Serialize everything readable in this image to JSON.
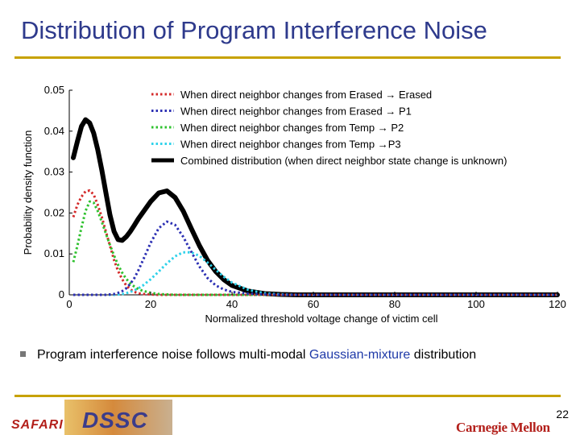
{
  "slide": {
    "title": "Distribution of Program Interference Noise",
    "bullet": {
      "text_before": "Program interference noise follows multi-modal ",
      "highlight": "Gaussian-mixture",
      "text_after": " distribution"
    },
    "page_number": "22",
    "logos": {
      "safari": "SAFARI",
      "dssc": "DSSC",
      "cmu": "Carnegie Mellon"
    }
  },
  "chart_data": {
    "type": "line",
    "xlabel": "Normalized threshold voltage change of victim cell",
    "ylabel": "Probability density function",
    "xlim": [
      0,
      120
    ],
    "ylim": [
      0,
      0.05
    ],
    "xticks": [
      0,
      20,
      40,
      60,
      80,
      100,
      120
    ],
    "yticks": [
      0,
      0.01,
      0.02,
      0.03,
      0.04,
      0.05
    ],
    "ytick_labels": [
      "0",
      "0.01",
      "0.02",
      "0.03",
      "0.04",
      "0.05"
    ],
    "legend_position": "top-right",
    "x": [
      1,
      2,
      3,
      4,
      5,
      6,
      7,
      8,
      9,
      10,
      11,
      12,
      13,
      14,
      15,
      16,
      17,
      18,
      20,
      22,
      24,
      26,
      28,
      30,
      32,
      34,
      36,
      38,
      40,
      44,
      48,
      52,
      56,
      60,
      70,
      80,
      90,
      100,
      110,
      120
    ],
    "series": [
      {
        "name": "When direct neighbor changes from Erased → Erased",
        "color": "#d42a2a",
        "style": "dotted",
        "width": 3,
        "values": [
          0.019,
          0.022,
          0.024,
          0.0253,
          0.0255,
          0.0245,
          0.022,
          0.019,
          0.0155,
          0.012,
          0.0085,
          0.0058,
          0.0038,
          0.0023,
          0.0013,
          0.0007,
          0.0004,
          0.0002,
          0.0001,
          0,
          0,
          0,
          0,
          0,
          0,
          0,
          0,
          0,
          0,
          0,
          0,
          0,
          0,
          0,
          0,
          0,
          0,
          0,
          0,
          0
        ]
      },
      {
        "name": "When direct neighbor changes from Erased → P1",
        "color": "#2b2fb3",
        "style": "dotted",
        "width": 3,
        "values": [
          0,
          0,
          0,
          0,
          0,
          0,
          0,
          0,
          0,
          0.0001,
          0.0002,
          0.0005,
          0.0009,
          0.0016,
          0.0027,
          0.0041,
          0.006,
          0.0082,
          0.0127,
          0.0163,
          0.0179,
          0.0171,
          0.0142,
          0.0105,
          0.0069,
          0.0041,
          0.0023,
          0.0013,
          0.0007,
          0.0003,
          0.0001,
          0,
          0,
          0,
          0,
          0,
          0,
          0,
          0,
          0
        ]
      },
      {
        "name": "When direct neighbor changes from Temp → P2",
        "color": "#2ec12e",
        "style": "dotted",
        "width": 3,
        "values": [
          0.008,
          0.012,
          0.0165,
          0.0205,
          0.0228,
          0.0225,
          0.0205,
          0.0178,
          0.015,
          0.0122,
          0.0096,
          0.0073,
          0.0054,
          0.0039,
          0.0028,
          0.002,
          0.0014,
          0.001,
          0.0005,
          0.0002,
          0.0001,
          0,
          0,
          0,
          0,
          0,
          0,
          0,
          0,
          0,
          0,
          0,
          0,
          0,
          0,
          0,
          0,
          0,
          0,
          0
        ]
      },
      {
        "name": "When direct neighbor changes from Temp →P3",
        "color": "#2fd2ea",
        "style": "dotted",
        "width": 3,
        "values": [
          0,
          0,
          0,
          0,
          0,
          0,
          0,
          0,
          0,
          0,
          0,
          0.0001,
          0.0002,
          0.0004,
          0.0007,
          0.0011,
          0.0016,
          0.0022,
          0.0038,
          0.0057,
          0.0077,
          0.0094,
          0.0104,
          0.0104,
          0.0095,
          0.0079,
          0.0061,
          0.0044,
          0.003,
          0.0012,
          0.0004,
          0.0001,
          0,
          0,
          0,
          0,
          0,
          0,
          0,
          0
        ]
      },
      {
        "name": "Combined distribution (when direct neighbor state change is unknown)",
        "color": "#000000",
        "style": "solid",
        "width": 6,
        "values": [
          0.0335,
          0.0375,
          0.0412,
          0.0428,
          0.042,
          0.0395,
          0.0355,
          0.0305,
          0.025,
          0.0195,
          0.0155,
          0.0135,
          0.0133,
          0.0142,
          0.0155,
          0.017,
          0.0186,
          0.02,
          0.0228,
          0.0249,
          0.0254,
          0.0238,
          0.0205,
          0.0162,
          0.012,
          0.0084,
          0.0057,
          0.0037,
          0.0023,
          0.0009,
          0.0003,
          0.0001,
          0,
          0,
          0,
          0,
          0,
          0,
          0,
          0
        ]
      }
    ]
  }
}
